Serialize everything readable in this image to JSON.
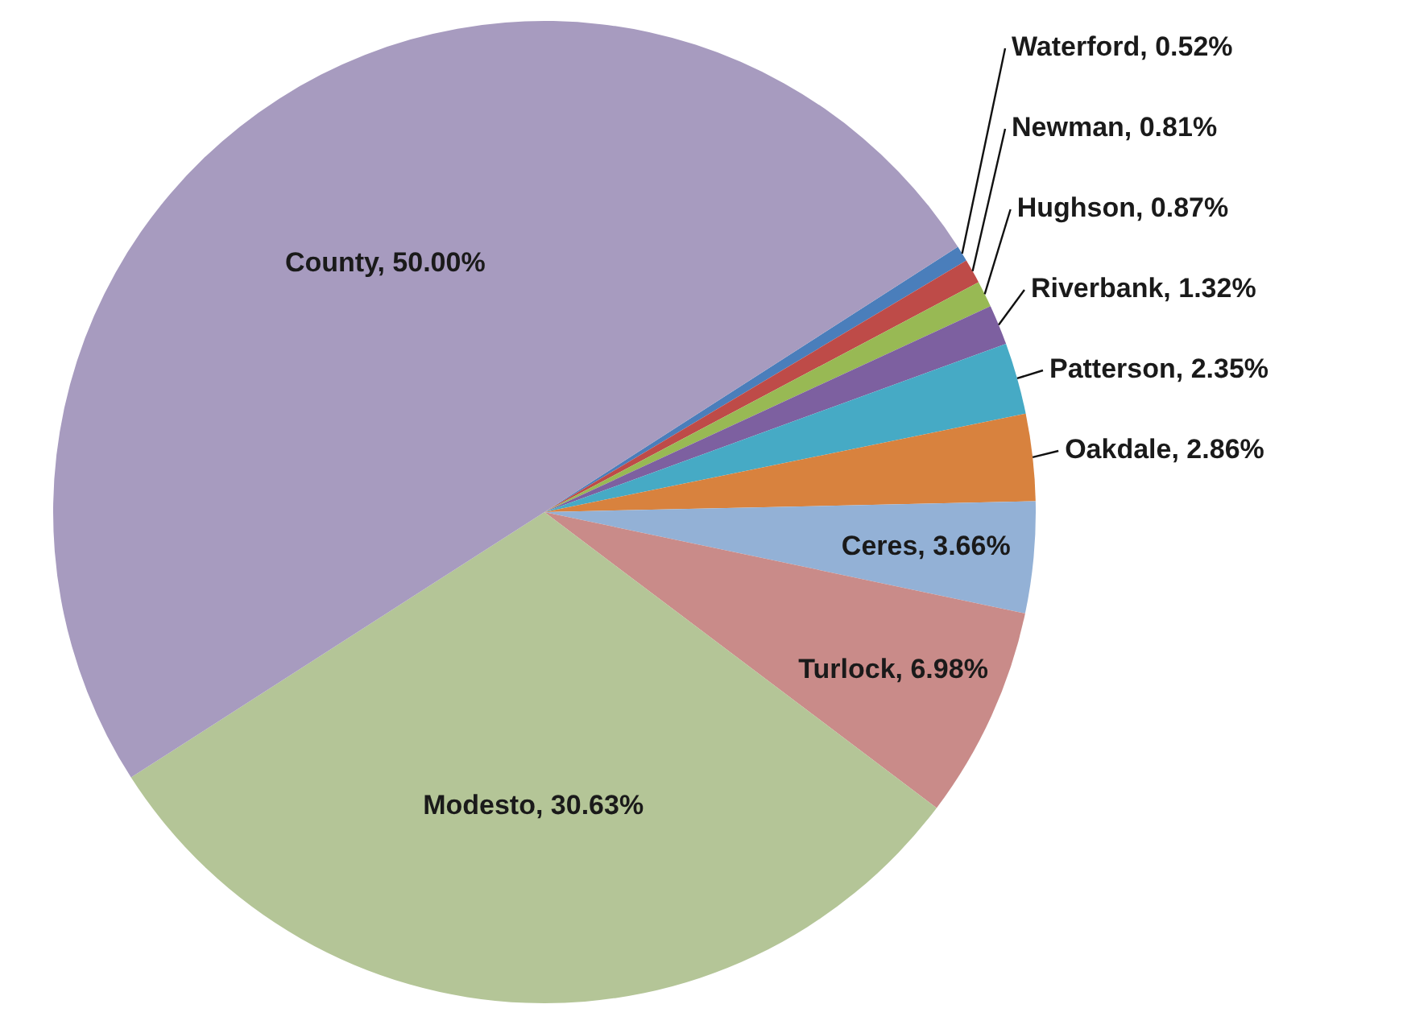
{
  "chart_data": {
    "type": "pie",
    "categories": [
      "Waterford",
      "Newman",
      "Hughson",
      "Riverbank",
      "Patterson",
      "Oakdale",
      "Ceres",
      "Turlock",
      "Modesto",
      "County"
    ],
    "values": [
      0.52,
      0.81,
      0.87,
      1.32,
      2.35,
      2.86,
      3.66,
      6.98,
      30.63,
      50.0
    ],
    "value_labels": [
      "0.52%",
      "0.81%",
      "0.87%",
      "1.32%",
      "2.35%",
      "2.86%",
      "3.66%",
      "6.98%",
      "30.63%",
      "50.00%"
    ],
    "colors": [
      "#4a7ebb",
      "#be4b48",
      "#98b954",
      "#7d60a0",
      "#46aac5",
      "#d8823e",
      "#93b1d6",
      "#c98b89",
      "#b4c597",
      "#a79bbf"
    ],
    "legend": false
  }
}
